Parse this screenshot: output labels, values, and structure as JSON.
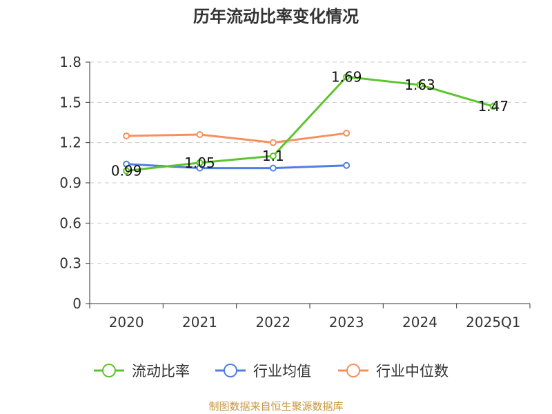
{
  "title": "历年流动比率变化情况",
  "source": "制图数据来自恒生聚源数据库",
  "chart_data": {
    "type": "line",
    "categories": [
      "2020",
      "2021",
      "2022",
      "2023",
      "2024",
      "2025Q1"
    ],
    "ylim": [
      0,
      1.8
    ],
    "yticks": [
      "0",
      "0.3",
      "0.6",
      "0.9",
      "1.2",
      "1.5",
      "1.8"
    ],
    "grid": true,
    "legend_position": "bottom",
    "series": [
      {
        "name": "流动比率",
        "color": "#5cc52b",
        "values": [
          0.99,
          1.05,
          1.1,
          1.69,
          1.63,
          1.47
        ],
        "labels": [
          "0.99",
          "1.05",
          "1.1",
          "1.69",
          "1.63",
          "1.47"
        ]
      },
      {
        "name": "行业均值",
        "color": "#4e7fe0",
        "values": [
          1.04,
          1.01,
          1.01,
          1.03,
          null,
          null
        ]
      },
      {
        "name": "行业中位数",
        "color": "#f5905e",
        "values": [
          1.25,
          1.26,
          1.2,
          1.27,
          null,
          null
        ]
      }
    ]
  }
}
